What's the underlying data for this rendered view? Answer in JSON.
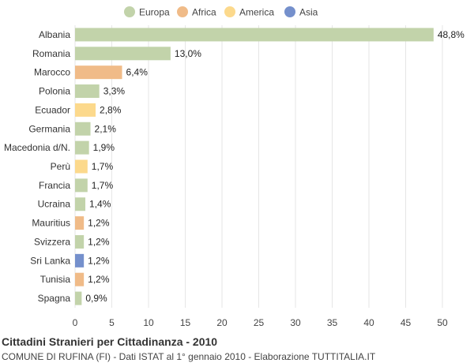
{
  "chart_data": {
    "type": "bar",
    "orientation": "horizontal",
    "title": "Cittadini Stranieri per Cittadinanza - 2010",
    "subtitle": "COMUNE DI RUFINA (FI) - Dati ISTAT al 1° gennaio 2010 - Elaborazione TUTTITALIA.IT",
    "xlim": [
      0,
      50
    ],
    "xticks": [
      0,
      5,
      10,
      15,
      20,
      25,
      30,
      35,
      40,
      45,
      50
    ],
    "legend_position": "top-center",
    "legend": [
      {
        "name": "Europa",
        "color": "#c2d3aa"
      },
      {
        "name": "Africa",
        "color": "#f0bb88"
      },
      {
        "name": "America",
        "color": "#fcd98c"
      },
      {
        "name": "Asia",
        "color": "#7590cc"
      }
    ],
    "categories": [
      "Albania",
      "Romania",
      "Marocco",
      "Polonia",
      "Ecuador",
      "Germania",
      "Macedonia d/N.",
      "Perù",
      "Francia",
      "Ucraina",
      "Mauritius",
      "Svizzera",
      "Sri Lanka",
      "Tunisia",
      "Spagna"
    ],
    "values": [
      48.8,
      13.0,
      6.4,
      3.3,
      2.8,
      2.1,
      1.9,
      1.7,
      1.7,
      1.4,
      1.2,
      1.2,
      1.2,
      1.2,
      0.9
    ],
    "labels": [
      "48,8%",
      "13,0%",
      "6,4%",
      "3,3%",
      "2,8%",
      "2,1%",
      "1,9%",
      "1,7%",
      "1,7%",
      "1,4%",
      "1,2%",
      "1,2%",
      "1,2%",
      "1,2%",
      "0,9%"
    ],
    "continents": [
      "Europa",
      "Europa",
      "Africa",
      "Europa",
      "America",
      "Europa",
      "Europa",
      "America",
      "Europa",
      "Europa",
      "Africa",
      "Europa",
      "Asia",
      "Africa",
      "Europa"
    ]
  }
}
